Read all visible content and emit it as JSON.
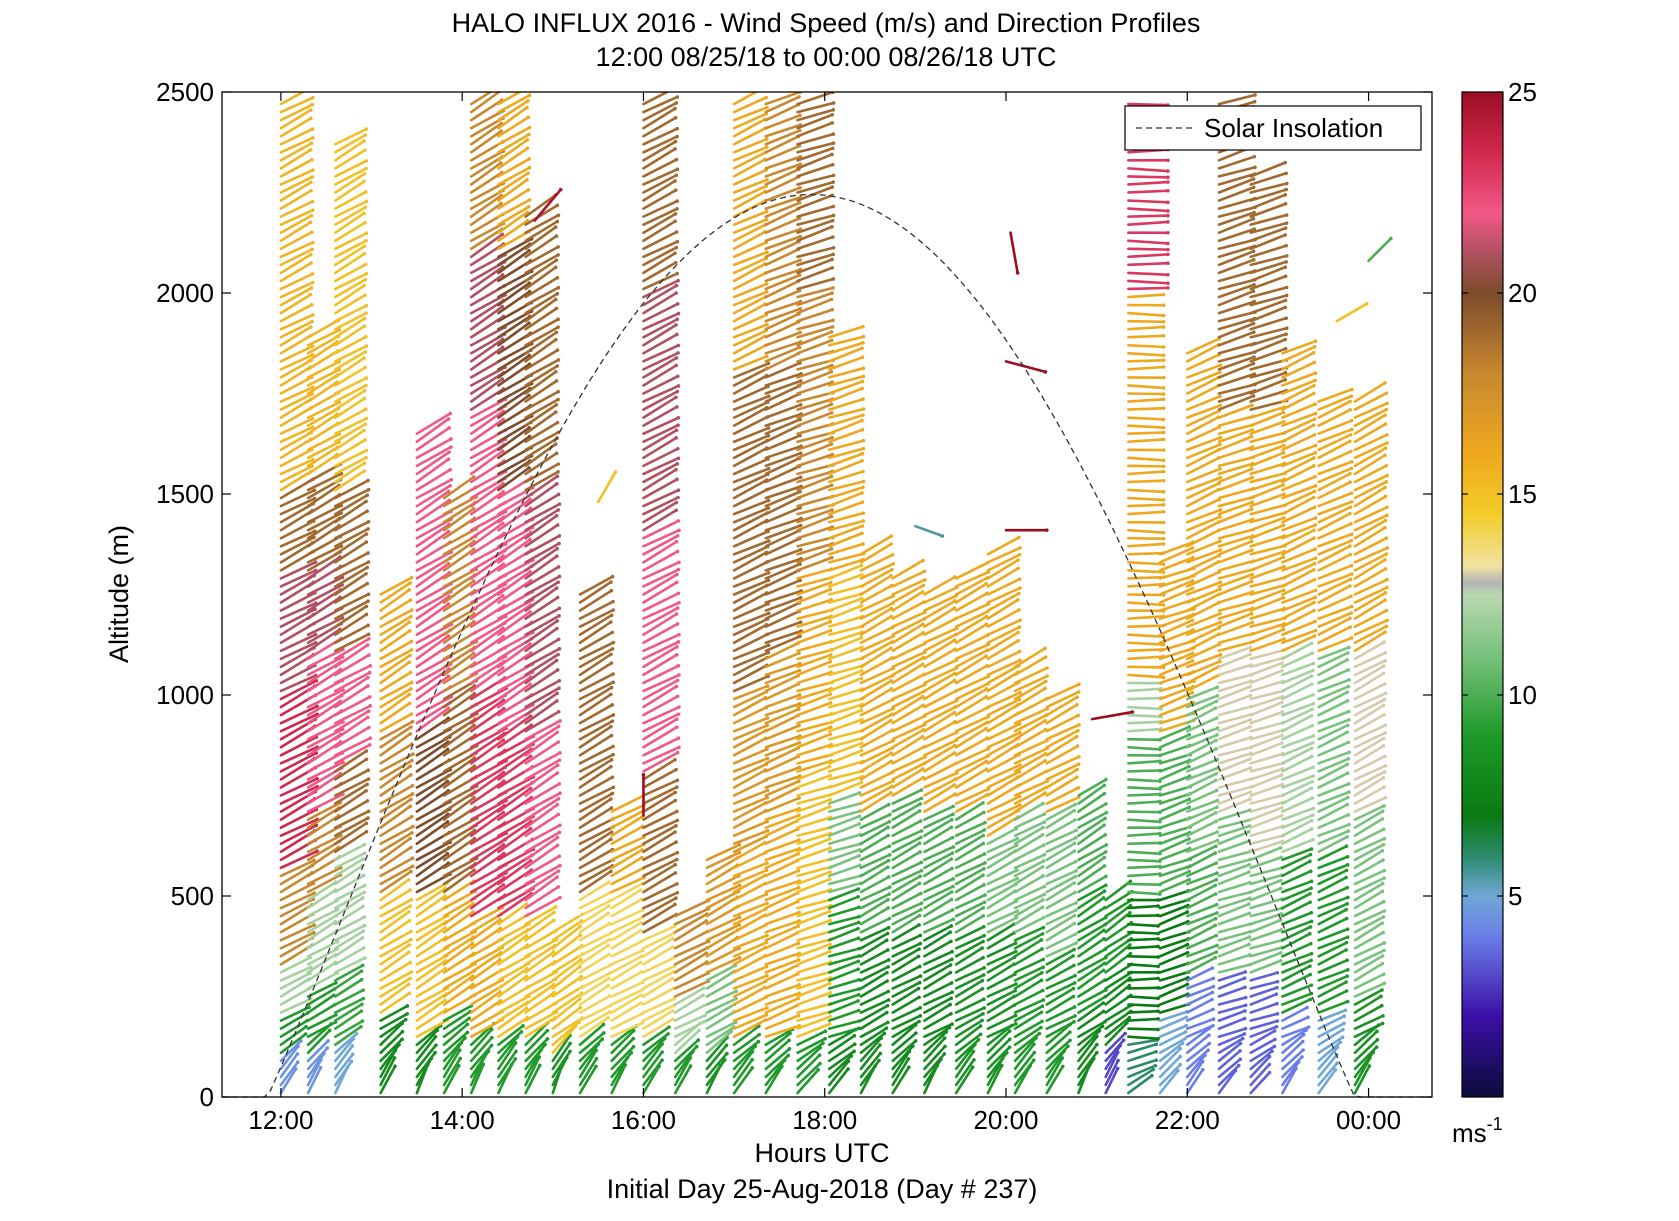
{
  "chart_data": {
    "type": "quiver-profile",
    "title": "HALO INFLUX 2016 - Wind Speed (m/s) and Direction Profiles",
    "subtitle": "12:00 08/25/18 to 00:00 08/26/18  UTC",
    "xlabel": "Hours UTC",
    "footer": "Initial Day 25-Aug-2018 (Day # 237)",
    "ylabel": "Altitude (m)",
    "x_range_hours": [
      11.35,
      24.7
    ],
    "ylim": [
      0,
      2500
    ],
    "x_ticks": [
      {
        "hour": 12,
        "label": "12:00"
      },
      {
        "hour": 14,
        "label": "14:00"
      },
      {
        "hour": 16,
        "label": "16:00"
      },
      {
        "hour": 18,
        "label": "18:00"
      },
      {
        "hour": 20,
        "label": "20:00"
      },
      {
        "hour": 22,
        "label": "22:00"
      },
      {
        "hour": 24,
        "label": "00:00"
      }
    ],
    "y_ticks": [
      0,
      500,
      1000,
      1500,
      2000,
      2500
    ],
    "colorbar": {
      "min": 0,
      "max": 25,
      "ticks": [
        5,
        10,
        15,
        20,
        25
      ],
      "unit_label": "ms",
      "unit_exponent": "-1",
      "stops": [
        {
          "v": 0,
          "c": "#0b0b3a"
        },
        {
          "v": 2,
          "c": "#3b0fa8"
        },
        {
          "v": 4,
          "c": "#6a7ee8"
        },
        {
          "v": 5,
          "c": "#6fa7d6"
        },
        {
          "v": 6,
          "c": "#2b8a6a"
        },
        {
          "v": 7,
          "c": "#0a7a12"
        },
        {
          "v": 9,
          "c": "#1f9a2a"
        },
        {
          "v": 11,
          "c": "#79c27e"
        },
        {
          "v": 12.5,
          "c": "#b9d8b0"
        },
        {
          "v": 12.8,
          "c": "#b4b4b4"
        },
        {
          "v": 13.2,
          "c": "#f1e2a0"
        },
        {
          "v": 14.5,
          "c": "#f3cc2a"
        },
        {
          "v": 16,
          "c": "#eea81e"
        },
        {
          "v": 18,
          "c": "#c8882f"
        },
        {
          "v": 20,
          "c": "#7c4c2c"
        },
        {
          "v": 21,
          "c": "#b05060"
        },
        {
          "v": 22,
          "c": "#f25886"
        },
        {
          "v": 23.5,
          "c": "#d0284c"
        },
        {
          "v": 25,
          "c": "#9a0e22"
        }
      ]
    },
    "legend": {
      "label": "Solar Insolation",
      "position": "top-right",
      "style": "dashed"
    },
    "solar_insolation": {
      "peak_hour": 17.85,
      "peak_altitude": 2245,
      "width_hours": 6.0
    },
    "profiles": [
      {
        "hour": 12.0,
        "top": 2480,
        "segments": [
          [
            0,
            100,
            4.5
          ],
          [
            100,
            200,
            9
          ],
          [
            200,
            320,
            12
          ],
          [
            320,
            560,
            18
          ],
          [
            560,
            1000,
            23.5
          ],
          [
            1000,
            1300,
            21
          ],
          [
            1300,
            1500,
            19
          ],
          [
            1500,
            2480,
            15.5
          ]
        ],
        "dir": 62
      },
      {
        "hour": 12.3,
        "top": 1900,
        "segments": [
          [
            0,
            100,
            4.5
          ],
          [
            100,
            260,
            9
          ],
          [
            260,
            500,
            12
          ],
          [
            500,
            700,
            18
          ],
          [
            700,
            1100,
            22
          ],
          [
            1100,
            1300,
            21
          ],
          [
            1300,
            1550,
            19
          ],
          [
            1550,
            1900,
            15.5
          ]
        ],
        "dir": 60
      },
      {
        "hour": 12.6,
        "top": 2380,
        "segments": [
          [
            0,
            120,
            5
          ],
          [
            120,
            300,
            9.5
          ],
          [
            300,
            600,
            12
          ],
          [
            600,
            820,
            19
          ],
          [
            820,
            1100,
            22
          ],
          [
            1100,
            1500,
            19
          ],
          [
            1500,
            2380,
            15
          ]
        ],
        "dir": 60
      },
      {
        "hour": 13.1,
        "top": 1250,
        "segments": [
          [
            0,
            200,
            8
          ],
          [
            200,
            500,
            15
          ],
          [
            500,
            900,
            18
          ],
          [
            900,
            1250,
            16
          ]
        ],
        "dir": 58
      },
      {
        "hour": 13.5,
        "top": 1650,
        "segments": [
          [
            0,
            150,
            8
          ],
          [
            150,
            500,
            15
          ],
          [
            500,
            900,
            20
          ],
          [
            900,
            1650,
            22
          ]
        ],
        "dir": 58
      },
      {
        "hour": 13.8,
        "top": 1500,
        "segments": [
          [
            0,
            200,
            9
          ],
          [
            200,
            500,
            16
          ],
          [
            500,
            1000,
            19
          ],
          [
            1000,
            1500,
            18
          ]
        ],
        "dir": 58
      },
      {
        "hour": 14.1,
        "top": 2480,
        "segments": [
          [
            0,
            150,
            9
          ],
          [
            150,
            450,
            16
          ],
          [
            450,
            1000,
            23
          ],
          [
            1000,
            1700,
            22
          ],
          [
            1700,
            2100,
            21
          ],
          [
            2100,
            2480,
            18
          ]
        ],
        "dir": 58
      },
      {
        "hour": 14.4,
        "top": 2480,
        "segments": [
          [
            0,
            150,
            9
          ],
          [
            150,
            450,
            15
          ],
          [
            450,
            900,
            23
          ],
          [
            900,
            1500,
            22
          ],
          [
            1500,
            2100,
            20
          ],
          [
            2100,
            2480,
            16
          ]
        ],
        "dir": 58
      },
      {
        "hour": 14.7,
        "top": 2200,
        "segments": [
          [
            0,
            150,
            9
          ],
          [
            150,
            450,
            15
          ],
          [
            450,
            900,
            22
          ],
          [
            900,
            1500,
            21
          ],
          [
            1500,
            2200,
            19
          ]
        ],
        "dir": 58
      },
      {
        "hour": 15.0,
        "top": 420,
        "segments": [
          [
            0,
            100,
            8.5
          ],
          [
            100,
            420,
            15
          ]
        ],
        "dir": 55
      },
      {
        "hour": 15.3,
        "top": 1250,
        "segments": [
          [
            0,
            150,
            9
          ],
          [
            150,
            500,
            14
          ],
          [
            500,
            1250,
            19
          ]
        ],
        "dir": 60
      },
      {
        "hour": 15.65,
        "top": 720,
        "segments": [
          [
            0,
            150,
            9
          ],
          [
            150,
            500,
            14
          ],
          [
            500,
            720,
            16
          ]
        ],
        "dir": 62
      },
      {
        "hour": 16.0,
        "top": 2480,
        "segments": [
          [
            0,
            150,
            9
          ],
          [
            150,
            400,
            14
          ],
          [
            400,
            800,
            19
          ],
          [
            800,
            1400,
            22
          ],
          [
            1400,
            2000,
            21
          ],
          [
            2000,
            2480,
            19
          ]
        ],
        "dir": 62
      },
      {
        "hour": 16.35,
        "top": 450,
        "segments": [
          [
            0,
            100,
            9
          ],
          [
            100,
            250,
            12
          ],
          [
            250,
            450,
            18
          ]
        ],
        "dir": 62
      },
      {
        "hour": 16.7,
        "top": 600,
        "segments": [
          [
            0,
            100,
            8.5
          ],
          [
            100,
            300,
            11
          ],
          [
            300,
            600,
            17
          ]
        ],
        "dir": 62
      },
      {
        "hour": 17.0,
        "top": 2480,
        "segments": [
          [
            0,
            150,
            9
          ],
          [
            150,
            600,
            16
          ],
          [
            600,
            1000,
            17
          ],
          [
            1000,
            1800,
            19
          ],
          [
            1800,
            2480,
            16
          ]
        ],
        "dir": 65
      },
      {
        "hour": 17.35,
        "top": 2480,
        "segments": [
          [
            0,
            150,
            9
          ],
          [
            150,
            700,
            16
          ],
          [
            700,
            1100,
            17
          ],
          [
            1100,
            1800,
            19
          ],
          [
            1800,
            2480,
            18
          ]
        ],
        "dir": 68
      },
      {
        "hour": 17.7,
        "top": 2480,
        "segments": [
          [
            0,
            150,
            9
          ],
          [
            150,
            800,
            15
          ],
          [
            800,
            1300,
            16
          ],
          [
            1300,
            2000,
            18
          ],
          [
            2000,
            2480,
            19
          ]
        ],
        "dir": 72
      },
      {
        "hour": 18.05,
        "top": 1900,
        "segments": [
          [
            0,
            150,
            8
          ],
          [
            150,
            500,
            9
          ],
          [
            500,
            750,
            11
          ],
          [
            750,
            1300,
            15
          ],
          [
            1300,
            1900,
            16
          ]
        ],
        "dir": 72
      },
      {
        "hour": 18.4,
        "top": 1350,
        "segments": [
          [
            0,
            400,
            8
          ],
          [
            400,
            700,
            10
          ],
          [
            700,
            1350,
            16
          ]
        ],
        "dir": 62
      },
      {
        "hour": 18.75,
        "top": 1300,
        "segments": [
          [
            0,
            400,
            8
          ],
          [
            400,
            750,
            10
          ],
          [
            750,
            1300,
            16
          ]
        ],
        "dir": 62
      },
      {
        "hour": 19.1,
        "top": 1250,
        "segments": [
          [
            0,
            400,
            8
          ],
          [
            400,
            700,
            10
          ],
          [
            700,
            1250,
            16
          ]
        ],
        "dir": 62
      },
      {
        "hour": 19.45,
        "top": 1300,
        "segments": [
          [
            0,
            400,
            8.5
          ],
          [
            400,
            700,
            10
          ],
          [
            700,
            1300,
            16
          ]
        ],
        "dir": 62
      },
      {
        "hour": 19.8,
        "top": 1350,
        "segments": [
          [
            0,
            400,
            8.5
          ],
          [
            400,
            650,
            11
          ],
          [
            650,
            1350,
            16
          ]
        ],
        "dir": 62
      },
      {
        "hour": 20.1,
        "top": 1080,
        "segments": [
          [
            0,
            400,
            9
          ],
          [
            400,
            700,
            11
          ],
          [
            700,
            1080,
            16
          ]
        ],
        "dir": 62
      },
      {
        "hour": 20.45,
        "top": 1000,
        "segments": [
          [
            0,
            350,
            9
          ],
          [
            350,
            700,
            11
          ],
          [
            700,
            1000,
            16
          ]
        ],
        "dir": 62
      },
      {
        "hour": 20.8,
        "top": 750,
        "segments": [
          [
            0,
            200,
            8
          ],
          [
            200,
            500,
            9
          ],
          [
            500,
            750,
            10
          ]
        ],
        "dir": 58
      },
      {
        "hour": 21.1,
        "top": 500,
        "segments": [
          [
            0,
            120,
            3
          ],
          [
            120,
            300,
            8
          ],
          [
            300,
            500,
            9
          ]
        ],
        "dir": 55
      },
      {
        "hour": 21.35,
        "top": 2480,
        "segments": [
          [
            0,
            150,
            6
          ],
          [
            150,
            500,
            7
          ],
          [
            500,
            900,
            10
          ],
          [
            900,
            1050,
            12
          ],
          [
            1050,
            2000,
            16
          ],
          [
            2000,
            2480,
            23
          ]
        ],
        "dir": 90
      },
      {
        "hour": 21.7,
        "top": 1350,
        "segments": [
          [
            0,
            200,
            5
          ],
          [
            200,
            500,
            7
          ],
          [
            500,
            900,
            10
          ],
          [
            900,
            1350,
            16
          ]
        ],
        "dir": 70
      },
      {
        "hour": 22.0,
        "top": 1850,
        "segments": [
          [
            0,
            300,
            4
          ],
          [
            300,
            600,
            10
          ],
          [
            600,
            1000,
            11
          ],
          [
            1000,
            1850,
            16
          ]
        ],
        "dir": 66
      },
      {
        "hour": 22.35,
        "top": 2480,
        "segments": [
          [
            0,
            300,
            3.5
          ],
          [
            300,
            700,
            11
          ],
          [
            700,
            1100,
            13
          ],
          [
            1100,
            1700,
            16
          ],
          [
            1700,
            2480,
            19
          ]
        ],
        "dir": 72
      },
      {
        "hour": 22.7,
        "top": 2300,
        "segments": [
          [
            0,
            300,
            3.5
          ],
          [
            300,
            600,
            11
          ],
          [
            600,
            1100,
            13
          ],
          [
            1100,
            1700,
            16
          ],
          [
            1700,
            2300,
            19
          ]
        ],
        "dir": 72
      },
      {
        "hour": 23.05,
        "top": 1850,
        "segments": [
          [
            0,
            200,
            4
          ],
          [
            200,
            600,
            9
          ],
          [
            600,
            1100,
            12
          ],
          [
            1100,
            1850,
            16
          ]
        ],
        "dir": 66
      },
      {
        "hour": 23.45,
        "top": 1730,
        "segments": [
          [
            0,
            200,
            5
          ],
          [
            200,
            600,
            9
          ],
          [
            600,
            1100,
            11
          ],
          [
            1100,
            1730,
            16
          ]
        ],
        "dir": 66
      },
      {
        "hour": 23.85,
        "top": 1730,
        "segments": [
          [
            0,
            250,
            8.5
          ],
          [
            250,
            700,
            11
          ],
          [
            700,
            1100,
            13
          ],
          [
            1100,
            1730,
            16
          ]
        ],
        "dir": 62
      }
    ],
    "isolated_barbs": [
      {
        "hour": 14.8,
        "alt": 2180,
        "speed": 24.5,
        "dir": 40
      },
      {
        "hour": 15.5,
        "alt": 1480,
        "speed": 15,
        "dir": 30
      },
      {
        "hour": 19.0,
        "alt": 1420,
        "speed": 5.5,
        "dir": 110
      },
      {
        "hour": 20.05,
        "alt": 2150,
        "speed": 25,
        "dir": 170
      },
      {
        "hour": 20.0,
        "alt": 1830,
        "speed": 25,
        "dir": 105
      },
      {
        "hour": 20.0,
        "alt": 1410,
        "speed": 25,
        "dir": 90
      },
      {
        "hour": 20.95,
        "alt": 940,
        "speed": 25,
        "dir": 80
      },
      {
        "hour": 24.0,
        "alt": 2080,
        "speed": 10,
        "dir": 45
      },
      {
        "hour": 23.65,
        "alt": 1930,
        "speed": 15,
        "dir": 60
      },
      {
        "hour": 16.0,
        "alt": 700,
        "speed": 25,
        "dir": 0
      }
    ]
  }
}
